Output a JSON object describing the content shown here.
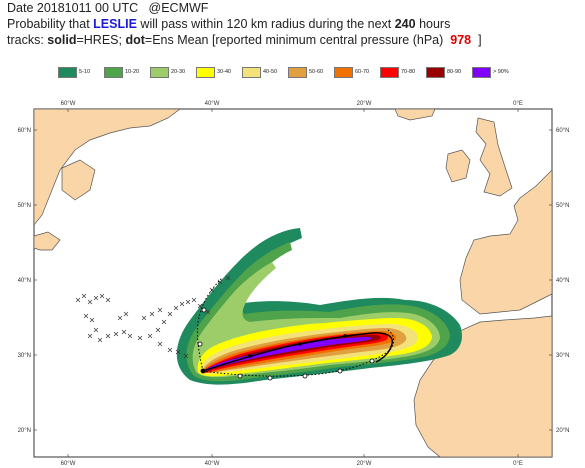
{
  "header": {
    "date_label": "Date 20181011 00 UTC",
    "source": "@ECMWF",
    "line2_prefix": "Probability that",
    "storm_name": "LESLIE",
    "line2_mid": "will pass within 120 km radius during the next",
    "hours": "240",
    "line2_suffix": "hours",
    "tracks_prefix": "tracks:",
    "solid_label": "solid",
    "solid_desc": "=HRES;",
    "dot_label": "dot",
    "dot_desc": "=Ens Mean [reported minimum central pressure (hPa)",
    "pressure": "978",
    "bracket_close": "]"
  },
  "legend": [
    {
      "label": "5-10",
      "color": "#1f8a5e"
    },
    {
      "label": "10-20",
      "color": "#4fa34a"
    },
    {
      "label": "20-30",
      "color": "#9ccd68"
    },
    {
      "label": "30-40",
      "color": "#ffff00"
    },
    {
      "label": "40-50",
      "color": "#f3e27a"
    },
    {
      "label": "50-60",
      "color": "#e0a040"
    },
    {
      "label": "60-70",
      "color": "#f07000"
    },
    {
      "label": "70-80",
      "color": "#ff0000"
    },
    {
      "label": "80-90",
      "color": "#990000"
    },
    {
      "label": "> 90%",
      "color": "#8000ff"
    }
  ],
  "axes": {
    "top_lon": [
      "60°W",
      "40°W",
      "20°W",
      "0°E"
    ],
    "bottom_lon": [
      "60°W",
      "40°W",
      "20°W",
      "0°E"
    ],
    "left_lat": [
      "60°N",
      "50°N",
      "40°N",
      "30°N",
      "20°N"
    ],
    "right_lat": [
      "60°N",
      "50°N",
      "40°N",
      "30°N",
      "20°N"
    ]
  },
  "colors": {
    "ocean": "#ffffff",
    "land": "#f9d5a7",
    "coast": "#555555",
    "hres_track": "#000000",
    "ens_track": "#000000"
  }
}
